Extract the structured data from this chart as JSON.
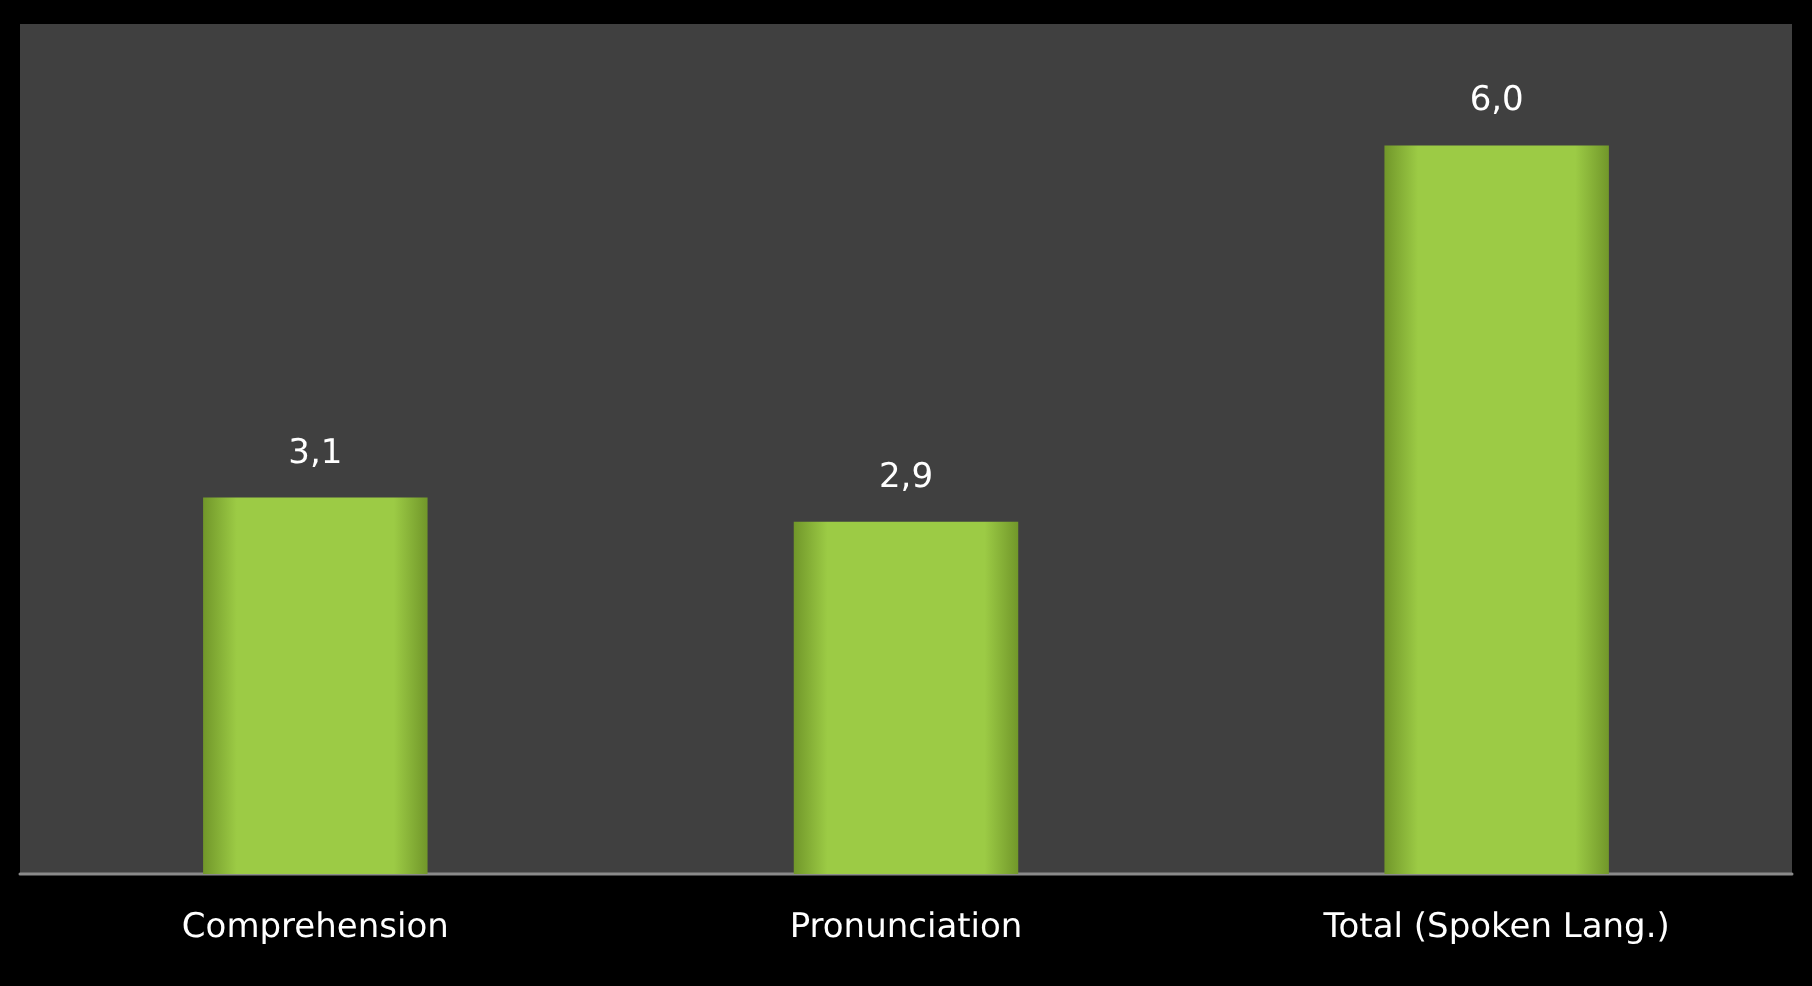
{
  "chart_data": {
    "type": "bar",
    "categories": [
      "Comprehension",
      "Pronunciation",
      "Total (Spoken Lang.)"
    ],
    "values": [
      3.1,
      2.9,
      6.0
    ],
    "value_labels": [
      "3,1",
      "2,9",
      "6,0"
    ],
    "color": "#9ccb45",
    "ylim": [
      0,
      7
    ],
    "tick_labels": "x"
  }
}
